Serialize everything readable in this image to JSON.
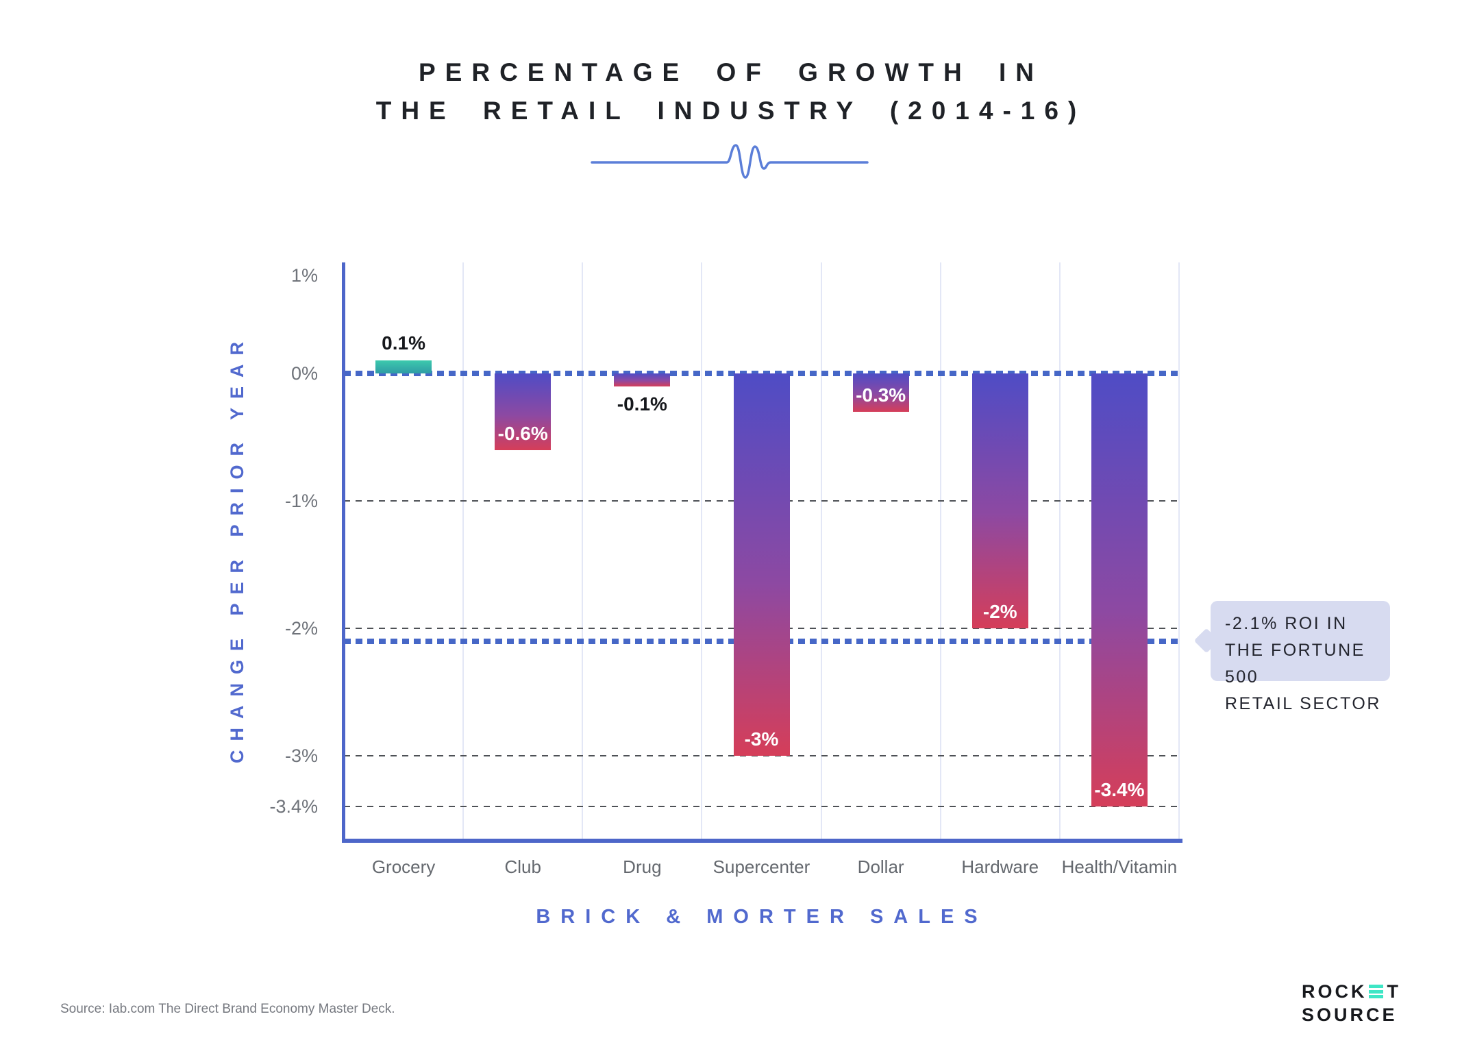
{
  "title": {
    "line1": "PERCENTAGE OF GROWTH IN",
    "line2": "THE RETAIL INDUSTRY (2014-16)"
  },
  "chart_data": {
    "type": "bar",
    "title": "PERCENTAGE OF GROWTH IN THE RETAIL INDUSTRY (2014-16)",
    "xlabel": "BRICK & MORTER SALES",
    "ylabel": "CHANGE PER PRIOR YEAR",
    "categories": [
      "Grocery",
      "Club",
      "Drug",
      "Supercenter",
      "Dollar",
      "Hardware",
      "Health/Vitamin"
    ],
    "values": [
      0.1,
      -0.6,
      -0.1,
      -3,
      -0.3,
      -2,
      -3.4
    ],
    "value_labels": [
      "0.1%",
      "-0.6%",
      "-0.1%",
      "-3%",
      "-0.3%",
      "-2%",
      "-3.4%"
    ],
    "y_ticks": [
      {
        "label": "1%",
        "value": 1
      },
      {
        "label": "0%",
        "value": 0
      },
      {
        "label": "-1%",
        "value": -1
      },
      {
        "label": "-2%",
        "value": -2
      },
      {
        "label": "-3%",
        "value": -3
      },
      {
        "label": "-3.4%",
        "value": -3.4
      }
    ],
    "ylim": [
      -3.75,
      0.9
    ],
    "grid": "vertical solid light, horizontal dashed at negative ticks",
    "legend_position": "none",
    "reference_lines": [
      {
        "value": 0,
        "style": "dotted",
        "color": "#4667c7",
        "label": ""
      },
      {
        "value": -2.1,
        "style": "dotted",
        "color": "#4667c7",
        "label": "-2.1% ROI IN THE FORTUNE 500 RETAIL SECTOR"
      }
    ],
    "annotation": {
      "text": "-2.1% ROI IN\nTHE FORTUNE 500\nRETAIL SECTOR"
    }
  },
  "colors": {
    "accent_blue": "#4d66c9",
    "axis_text_blue": "#5169ce",
    "dotted_line_blue": "#4667c7",
    "bar_gradient_top": "#4f4cc5",
    "bar_gradient_bottom": "#d53e59",
    "positive_bar_teal": "#3cc9ad",
    "annotation_bg": "#d7dbf0",
    "grid_light": "#e3e7f6",
    "dashed_grid": "#4e5156",
    "tick_text": "#6f737a",
    "logo_accent": "#3ee6c5"
  },
  "icons": {
    "divider": "pulse-squiggle-divider",
    "logo_e": "three-bar-e-glyph"
  },
  "footer": {
    "source": "Source: Iab.com The Direct Brand Economy Master Deck.",
    "logo_line1_pre": "ROCK",
    "logo_line1_post": "T",
    "logo_line2": "SOURCE"
  }
}
